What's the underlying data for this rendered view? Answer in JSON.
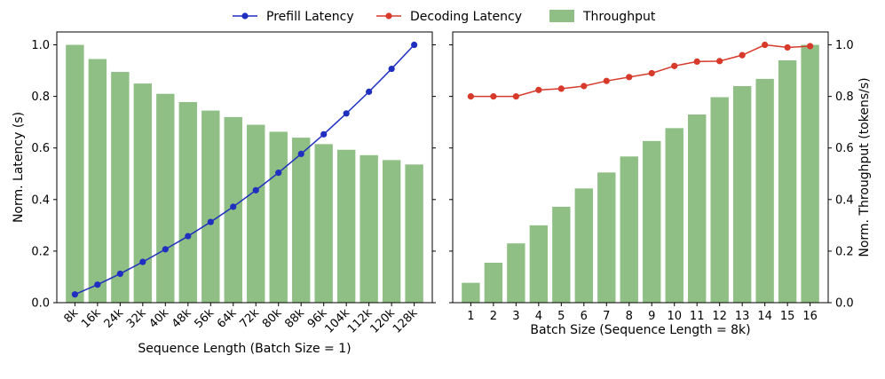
{
  "legend": {
    "entries": [
      {
        "label": "Prefill Latency",
        "color": "#1f2fbf",
        "kind": "line-marker"
      },
      {
        "label": "Decoding Latency",
        "color": "#d73a2b",
        "kind": "line-marker"
      },
      {
        "label": "Throughput",
        "color": "#8fbf85",
        "kind": "bar"
      }
    ],
    "placement": "top-center"
  },
  "chart_data": [
    {
      "type": "bar+line",
      "xlabel": "Sequence Length (Batch Size = 1)",
      "ylabel": "Norm. Latency (s)",
      "categories": [
        "8k",
        "16k",
        "24k",
        "32k",
        "40k",
        "48k",
        "56k",
        "64k",
        "72k",
        "80k",
        "88k",
        "96k",
        "104k",
        "112k",
        "120k",
        "128k"
      ],
      "ylim": [
        0,
        1.05
      ],
      "yticks": [
        "0.0",
        "0.2",
        "0.4",
        "0.6",
        "0.8",
        "1.0"
      ],
      "series": [
        {
          "name": "Throughput",
          "kind": "bar",
          "color": "#8fbf85",
          "values": [
            1.0,
            0.945,
            0.895,
            0.85,
            0.81,
            0.778,
            0.745,
            0.72,
            0.69,
            0.663,
            0.64,
            0.615,
            0.593,
            0.572,
            0.553,
            0.536
          ]
        },
        {
          "name": "Prefill Latency",
          "kind": "line",
          "color": "#1f2fbf",
          "values": [
            0.032,
            0.07,
            0.112,
            0.158,
            0.207,
            0.258,
            0.313,
            0.372,
            0.436,
            0.504,
            0.577,
            0.653,
            0.734,
            0.818,
            0.907,
            1.0
          ]
        }
      ],
      "grid": false
    },
    {
      "type": "bar+line",
      "xlabel": "Batch Size (Sequence Length = 8k)",
      "ylabel": "Norm. Throughput (tokens/s)",
      "yaxis_side": "right",
      "categories": [
        "1",
        "2",
        "3",
        "4",
        "5",
        "6",
        "7",
        "8",
        "9",
        "10",
        "11",
        "12",
        "13",
        "14",
        "15",
        "16"
      ],
      "ylim": [
        0,
        1.05
      ],
      "yticks": [
        "0.0",
        "0.2",
        "0.4",
        "0.6",
        "0.8",
        "1.0"
      ],
      "series": [
        {
          "name": "Throughput",
          "kind": "bar",
          "color": "#8fbf85",
          "values": [
            0.077,
            0.155,
            0.23,
            0.3,
            0.372,
            0.443,
            0.505,
            0.567,
            0.627,
            0.677,
            0.73,
            0.797,
            0.84,
            0.868,
            0.94,
            1.0
          ]
        },
        {
          "name": "Decoding Latency",
          "kind": "line",
          "color": "#d73a2b",
          "values": [
            0.8,
            0.8,
            0.8,
            0.825,
            0.83,
            0.84,
            0.86,
            0.875,
            0.89,
            0.918,
            0.935,
            0.937,
            0.96,
            1.0,
            0.99,
            0.995
          ]
        }
      ],
      "grid": false
    }
  ]
}
